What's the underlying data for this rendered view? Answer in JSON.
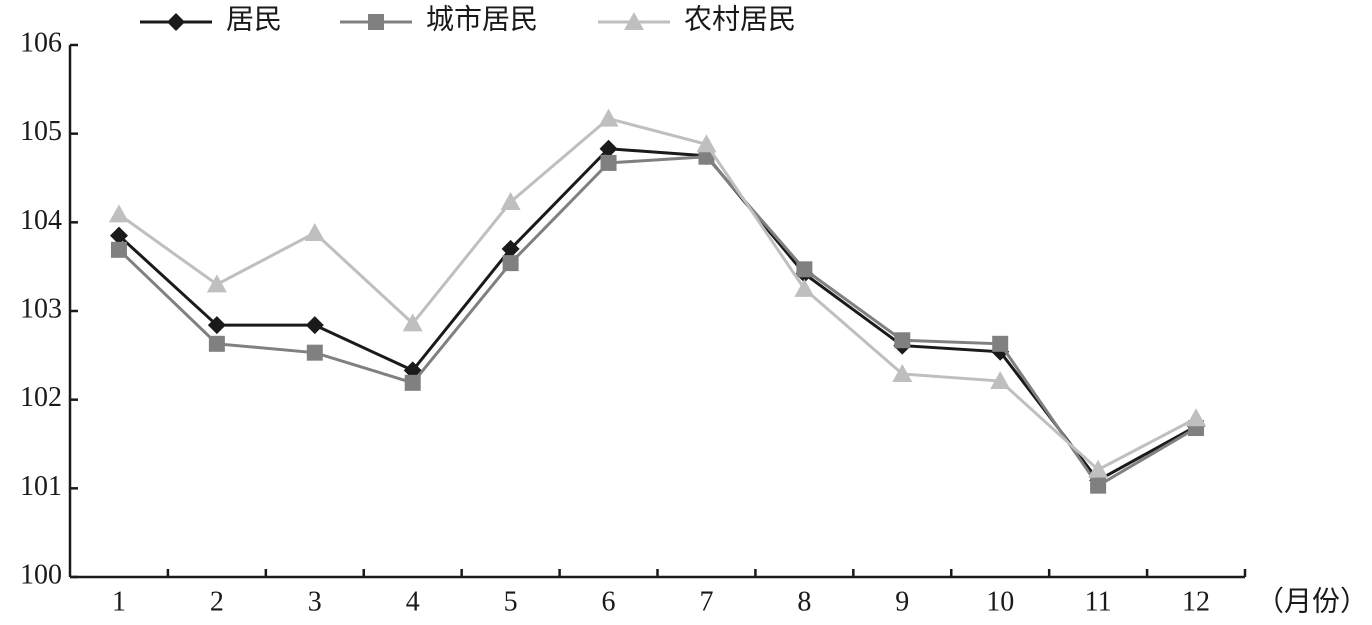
{
  "chart_data": {
    "type": "line",
    "categories": [
      "1",
      "2",
      "3",
      "4",
      "5",
      "6",
      "7",
      "8",
      "9",
      "10",
      "11",
      "12"
    ],
    "x_label": "（月份）",
    "series": [
      {
        "name": "居民",
        "color": "#1a1a1a",
        "marker": "diamond",
        "values": [
          103.85,
          102.84,
          102.84,
          102.33,
          103.7,
          104.83,
          104.75,
          103.42,
          102.61,
          102.54,
          101.09,
          101.7
        ]
      },
      {
        "name": "城市居民",
        "color": "#808080",
        "marker": "square",
        "values": [
          103.69,
          102.63,
          102.53,
          102.19,
          103.54,
          104.67,
          104.74,
          103.47,
          102.67,
          102.63,
          101.03,
          101.68
        ]
      },
      {
        "name": "农村居民",
        "color": "#bfbfbf",
        "marker": "triangle",
        "values": [
          104.09,
          103.3,
          103.88,
          102.86,
          104.23,
          105.17,
          104.88,
          103.25,
          102.29,
          102.21,
          101.21,
          101.79
        ]
      }
    ],
    "ylim": [
      100,
      106
    ],
    "yticks": [
      100,
      101,
      102,
      103,
      104,
      105,
      106
    ],
    "grid": false
  }
}
